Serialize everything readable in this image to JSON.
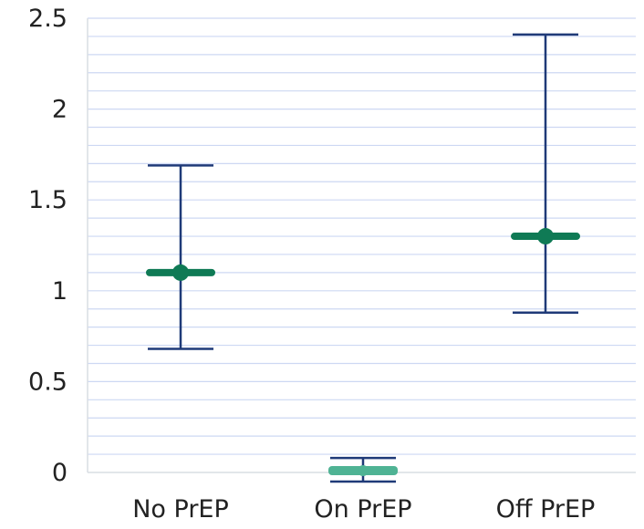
{
  "chart_data": {
    "type": "scatter",
    "subtype": "point-estimate-with-error-bars",
    "title": "",
    "xlabel": "",
    "ylabel": "",
    "ylim": [
      0,
      2.5
    ],
    "ytick_step": 0.5,
    "yticks": [
      0,
      0.5,
      1,
      1.5,
      2,
      2.5
    ],
    "ytick_labels": [
      "0",
      "0.5",
      "1",
      "1.5",
      "2",
      "2.5"
    ],
    "minor_grid_step": 0.1,
    "grid": true,
    "legend": "none",
    "categories": [
      "No PrEP",
      "On PrEP",
      "Off PrEP"
    ],
    "estimates": [
      1.1,
      0.01,
      1.3
    ],
    "lower": [
      0.68,
      -0.05,
      0.88
    ],
    "upper": [
      1.69,
      0.08,
      2.41
    ],
    "colors": {
      "marker": "#0f7a55",
      "marker_light": "#4fb394",
      "error_bar": "#1f3a78",
      "grid": "#cdd8f3",
      "axis": "#d9dde3"
    }
  }
}
